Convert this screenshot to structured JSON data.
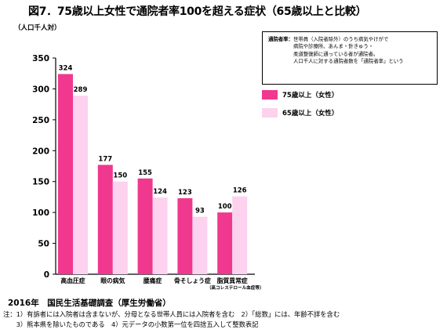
{
  "title": "図7．75歳以上女性で通院者率100を超える症状（65歳以上と比較）",
  "definition_note": {
    "label": "通院者率：",
    "lines": [
      "世帯員（入院者除外）のうち病気やけがで",
      "病院や診療所、あんま・針きゅう・",
      "柔道整復師に通っている者が通院者。",
      "人口千人に対する通院者数を「通院者率」という"
    ]
  },
  "legend": [
    {
      "label": "75歳以上（女性）",
      "color": "#f0388f"
    },
    {
      "label": "65歳以上（女性）",
      "color": "#fcd2ee"
    }
  ],
  "source": "2016年　国民生活基礎調査（厚生労働省）",
  "footnotes": [
    "注：1）有訴者には入院者は含まないが、分母となる世帯人員には入院者を含む　2）「総数」には、年齢不詳を含む",
    "　　3）熊本県を除いたものである　4）元データの小数第一位を四捨五入して整数表記"
  ],
  "chart_data": {
    "type": "bar",
    "ylabel": "（人口千人対）",
    "ylim": [
      0,
      350
    ],
    "yticks": [
      0,
      50,
      100,
      150,
      200,
      250,
      300,
      350
    ],
    "grid": false,
    "categories": [
      "高血圧症",
      "眼の病気",
      "腰痛症",
      "骨そしょう症",
      "脂質異常症"
    ],
    "category_sublabels": [
      "",
      "",
      "",
      "",
      "（高コレステロール血症等）"
    ],
    "series": [
      {
        "name": "75歳以上（女性）",
        "color": "#f0388f",
        "values": [
          324,
          177,
          155,
          123,
          100
        ]
      },
      {
        "name": "65歳以上（女性）",
        "color": "#fcd2ee",
        "values": [
          289,
          150,
          124,
          93,
          126
        ]
      }
    ]
  }
}
